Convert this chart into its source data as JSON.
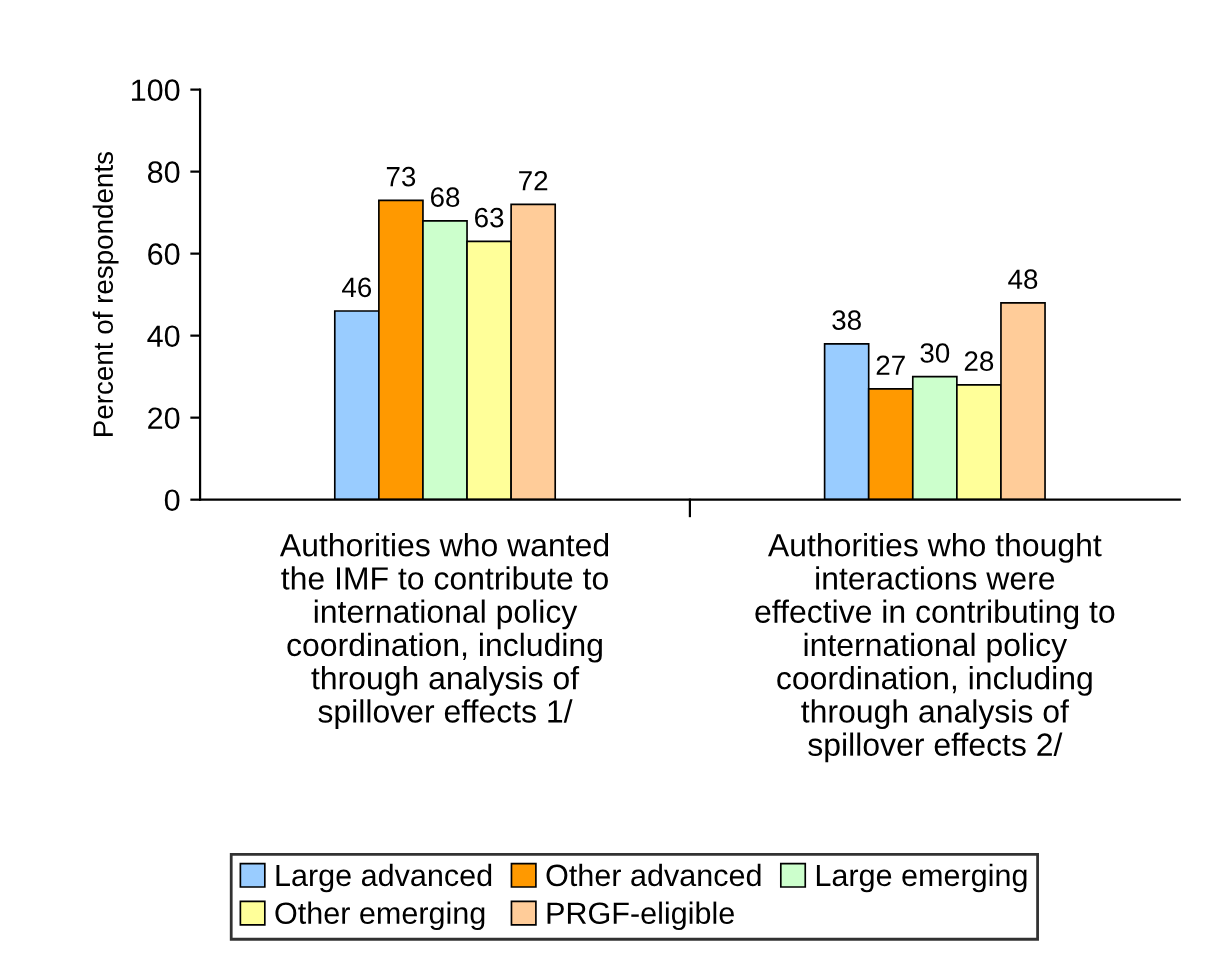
{
  "chart_data": {
    "type": "bar",
    "ylabel": "Percent of respondents",
    "categories": [
      "Authorities who wanted\nthe IMF to contribute to\ninternational policy\ncoordination, including\nthrough analysis of\nspillover effects 1/",
      "Authorities who thought\ninteractions were\neffective in contributing to\ninternational policy\ncoordination, including\nthrough analysis of\nspillover effects 2/"
    ],
    "series": [
      {
        "name": "Large advanced",
        "color": "#99ccff",
        "values": [
          46,
          38
        ]
      },
      {
        "name": "Other advanced",
        "color": "#ff9900",
        "values": [
          73,
          27
        ]
      },
      {
        "name": "Large emerging",
        "color": "#ccffcc",
        "values": [
          68,
          30
        ]
      },
      {
        "name": "Other emerging",
        "color": "#ffff99",
        "values": [
          63,
          28
        ]
      },
      {
        "name": "PRGF-eligible",
        "color": "#ffcc99",
        "values": [
          72,
          48
        ]
      }
    ],
    "ylim": [
      0,
      100
    ],
    "yticks": [
      0,
      20,
      40,
      60,
      80,
      100
    ],
    "grid": false,
    "legend": "bottom",
    "data_labels": true
  }
}
